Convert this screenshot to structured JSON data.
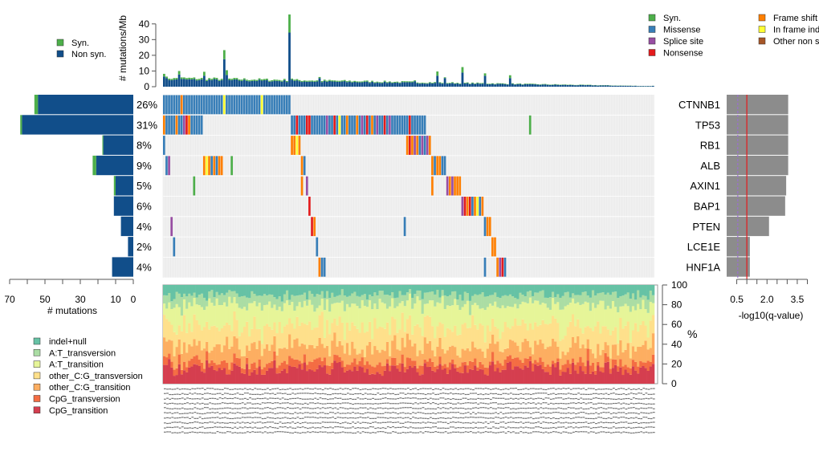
{
  "chart_data": [
    {
      "type": "bar",
      "name": "mutation-rate",
      "ylabel": "# mutations/Mb",
      "ylim": [
        0,
        45
      ],
      "yticks": [
        0,
        10,
        20,
        30,
        40
      ],
      "legend": [
        {
          "label": "Syn.",
          "color": "#4daf4a"
        },
        {
          "label": "Non syn.",
          "color": "#114e8a"
        }
      ],
      "legend_position": "top-left",
      "n_samples": 196,
      "series": [
        {
          "name": "Non syn.",
          "peaks": [
            [
              0,
              6.5
            ],
            [
              4,
              4.5
            ],
            [
              6,
              7.8
            ],
            [
              16,
              7
            ],
            [
              24,
              17.5
            ],
            [
              25,
              7.5
            ],
            [
              50,
              34.5
            ],
            [
              51,
              4.5
            ],
            [
              62,
              5.5
            ],
            [
              100,
              3.5
            ],
            [
              109,
              7
            ],
            [
              112,
              5.5
            ],
            [
              119,
              9
            ],
            [
              128,
              7
            ],
            [
              138,
              5.5
            ],
            [
              195,
              0.5
            ]
          ]
        },
        {
          "name": "Syn.",
          "peaks": [
            [
              0,
              1.7
            ],
            [
              6,
              2.2
            ],
            [
              16,
              2.5
            ],
            [
              24,
              5.8
            ],
            [
              25,
              3
            ],
            [
              50,
              11.5
            ],
            [
              109,
              2.7
            ],
            [
              119,
              3.5
            ],
            [
              128,
              1.5
            ],
            [
              138,
              1.8
            ]
          ]
        }
      ]
    },
    {
      "type": "bar",
      "name": "gene-mutation-counts",
      "orientation": "horizontal",
      "xlabel": "# mutations",
      "xlim": [
        70,
        0
      ],
      "xticks": [
        70,
        50,
        30,
        10,
        0
      ],
      "categories": [
        "CTNNB1",
        "TP53",
        "RB1",
        "ALB",
        "AXIN1",
        "BAP1",
        "PTEN",
        "LCE1E",
        "HNF1A"
      ],
      "percent_labels": [
        "26%",
        "31%",
        "8%",
        "9%",
        "5%",
        "6%",
        "4%",
        "2%",
        "4%"
      ],
      "series": [
        {
          "name": "Non syn.",
          "values": [
            54,
            63,
            17,
            21,
            10,
            11,
            7,
            3,
            12
          ]
        },
        {
          "name": "Syn.",
          "values": [
            2,
            1,
            0.5,
            2,
            1,
            0,
            0,
            0,
            0
          ]
        }
      ]
    },
    {
      "type": "heatmap",
      "name": "oncoprint",
      "rows": [
        "CTNNB1",
        "TP53",
        "RB1",
        "ALB",
        "AXIN1",
        "BAP1",
        "PTEN",
        "LCE1E",
        "HNF1A"
      ],
      "n_samples": 196,
      "legend": [
        {
          "label": "Syn.",
          "color": "#4daf4a"
        },
        {
          "label": "Missense",
          "color": "#377eb8"
        },
        {
          "label": "Splice site",
          "color": "#984ea3"
        },
        {
          "label": "Nonsense",
          "color": "#e41a1c"
        },
        {
          "label": "Frame shift",
          "color": "#ff7f00"
        },
        {
          "label": "In frame indel",
          "color": "#ffff33"
        },
        {
          "label": "Other non syn.",
          "color": "#a65628"
        }
      ],
      "legend_position": "top-right",
      "segments": [
        {
          "row": 0,
          "start": 0,
          "cols": "MMMMMMMFMMMMMMMMMMMMMMMMIMMMMMMMMMMMMMMIMMMMMMMMMMM"
        },
        {
          "row": 1,
          "start": 0,
          "cols": "FMMMMFMMSNFMMMMM"
        },
        {
          "row": 1,
          "start": 51,
          "cols": "MMNMMMNNMMMMMMSMMNMIMMFMMMFMSMNMFMSMMNMSMMMMMMMNMMMMMM"
        },
        {
          "row": 1,
          "start": 146,
          "cols": "Y"
        },
        {
          "row": 2,
          "start": 0,
          "cols": "M"
        },
        {
          "row": 2,
          "start": 51,
          "cols": "FFIF"
        },
        {
          "row": 2,
          "start": 97,
          "cols": "FNFSFMSMSF"
        },
        {
          "row": 3,
          "start": 1,
          "cols": "MS"
        },
        {
          "row": 3,
          "start": 16,
          "cols": "FIFMFMFF"
        },
        {
          "row": 3,
          "start": 27,
          "cols": "Y"
        },
        {
          "row": 3,
          "start": 55,
          "cols": "FM"
        },
        {
          "row": 3,
          "start": 107,
          "cols": "FMFFMM"
        },
        {
          "row": 4,
          "start": 12,
          "cols": "Y"
        },
        {
          "row": 4,
          "start": 55,
          "cols": "F"
        },
        {
          "row": 4,
          "start": 57,
          "cols": "S"
        },
        {
          "row": 4,
          "start": 107,
          "cols": "F"
        },
        {
          "row": 4,
          "start": 113,
          "cols": "SFSFFF"
        },
        {
          "row": 5,
          "start": 58,
          "cols": "N"
        },
        {
          "row": 5,
          "start": 119,
          "cols": "SNFNMFIMF"
        },
        {
          "row": 6,
          "start": 3,
          "cols": "S"
        },
        {
          "row": 6,
          "start": 59,
          "cols": "NF"
        },
        {
          "row": 6,
          "start": 96,
          "cols": "M"
        },
        {
          "row": 6,
          "start": 128,
          "cols": "MFF"
        },
        {
          "row": 7,
          "start": 4,
          "cols": "M"
        },
        {
          "row": 7,
          "start": 61,
          "cols": "M"
        },
        {
          "row": 7,
          "start": 131,
          "cols": "FF"
        },
        {
          "row": 8,
          "start": 62,
          "cols": "FMM"
        },
        {
          "row": 8,
          "start": 128,
          "cols": "M"
        },
        {
          "row": 8,
          "start": 133,
          "cols": "FSNM"
        }
      ],
      "code_key": {
        "M": "Missense",
        "S": "Splice site",
        "N": "Nonsense",
        "F": "Frame shift",
        "I": "In frame indel",
        "Y": "Syn.",
        "O": "Other non syn."
      }
    },
    {
      "type": "bar",
      "name": "q-values",
      "orientation": "horizontal",
      "xlabel": "-log10(q-value)",
      "xticks": [
        0.5,
        2.0,
        3.5
      ],
      "xlim": [
        0,
        4.1
      ],
      "categories": [
        "CTNNB1",
        "TP53",
        "RB1",
        "ALB",
        "AXIN1",
        "BAP1",
        "PTEN",
        "LCE1E",
        "HNF1A"
      ],
      "values": [
        3.05,
        3.05,
        3.05,
        3.05,
        2.95,
        2.9,
        2.1,
        1.15,
        1.15
      ],
      "reference_lines": [
        {
          "value": 0.55,
          "style": "dashed",
          "color": "#9a6fd0"
        },
        {
          "value": 1.0,
          "style": "solid",
          "color": "#e41a1c"
        }
      ]
    },
    {
      "type": "area",
      "name": "mutation-spectrum",
      "ylabel": "%",
      "ylim": [
        0,
        100
      ],
      "yticks": [
        0,
        20,
        40,
        60,
        80,
        100
      ],
      "n_samples": 196,
      "series_labels": [
        "indel+null",
        "A:T_transversion",
        "A:T_transition",
        "other_C:G_transversion",
        "other_C:G_transition",
        "CpG_transversion",
        "CpG_transition"
      ],
      "colors": [
        "#66c2a5",
        "#abdda4",
        "#e6f598",
        "#fee08b",
        "#fdae61",
        "#f46d43",
        "#d53e4f"
      ],
      "mean_fractions": [
        10,
        10,
        22,
        20,
        16,
        7,
        15
      ],
      "legend_position": "bottom-left"
    }
  ]
}
